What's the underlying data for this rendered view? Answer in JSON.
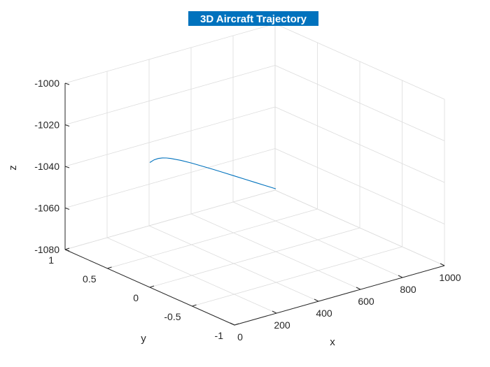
{
  "figure": {
    "background": "#ffffff",
    "grid_color": "#dcdcdc",
    "axis_color": "#262626"
  },
  "chart_data": {
    "type": "line",
    "view": "3d",
    "title": "3D Aircraft Trajectory",
    "title_background": "#0072bd",
    "xlabel": "x",
    "ylabel": "y",
    "zlabel": "z",
    "xlim": [
      0,
      1000
    ],
    "ylim": [
      -1,
      1
    ],
    "zlim": [
      -1080,
      -1000
    ],
    "xticks": [
      0,
      200,
      400,
      600,
      800,
      1000
    ],
    "yticks": [
      -1,
      -0.5,
      0,
      0.5,
      1
    ],
    "zticks": [
      -1080,
      -1060,
      -1040,
      -1020,
      -1000
    ],
    "xtick_labels": [
      "0",
      "200",
      "400",
      "600",
      "800",
      "1000"
    ],
    "ytick_labels": [
      "-1",
      "-0.5",
      "0",
      "0.5",
      "1"
    ],
    "ztick_labels": [
      "-1080",
      "-1060",
      "-1040",
      "-1020",
      "-1000"
    ],
    "grid": true,
    "series": [
      {
        "color": "#0072bd",
        "x": [
          0,
          20,
          40,
          60,
          80,
          100,
          150,
          200,
          250,
          300,
          350,
          400,
          450,
          500,
          550,
          600
        ],
        "y": [
          0,
          0,
          0,
          0,
          0,
          0,
          0,
          0,
          0,
          0,
          0,
          0,
          0,
          0,
          0,
          0
        ],
        "z": [
          -1020,
          -1019.3,
          -1019.2,
          -1019.5,
          -1020.1,
          -1020.9,
          -1023.3,
          -1026.0,
          -1028.9,
          -1031.8,
          -1034.8,
          -1037.8,
          -1040.8,
          -1043.8,
          -1046.8,
          -1049.8
        ]
      }
    ]
  }
}
